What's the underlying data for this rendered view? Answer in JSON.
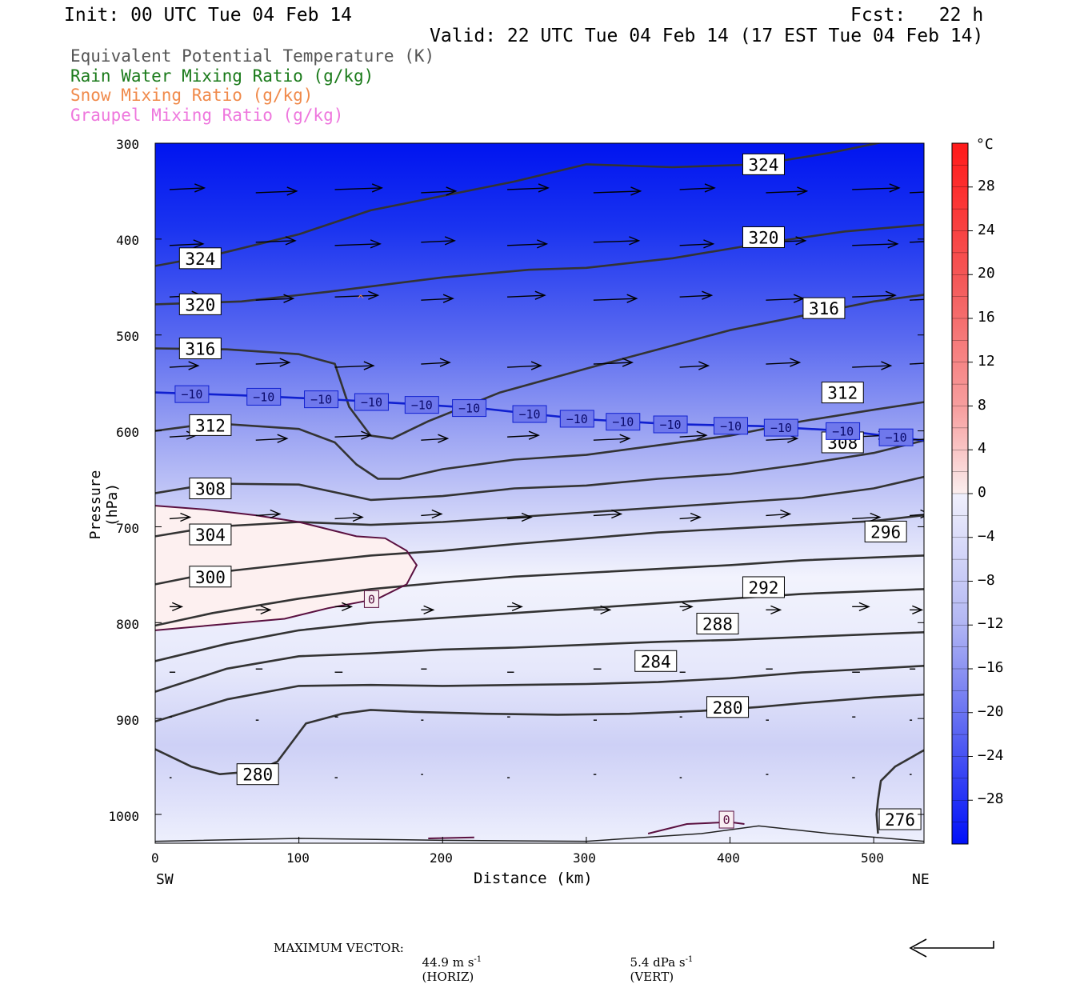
{
  "header": {
    "init": "Init: 00 UTC Tue 04 Feb 14",
    "fcst": "Fcst:   22 h",
    "valid": "Valid: 22 UTC Tue 04 Feb 14 (17 EST Tue 04 Feb 14)"
  },
  "legend": [
    {
      "label": "Equivalent Potential Temperature (K)",
      "color": "#555555"
    },
    {
      "label": "Rain Water Mixing Ratio (g/kg)",
      "color": "#1a7a1a"
    },
    {
      "label": "Snow Mixing Ratio (g/kg)",
      "color": "#f08a4b"
    },
    {
      "label": "Graupel Mixing Ratio (g/kg)",
      "color": "#ee77dd"
    }
  ],
  "axes": {
    "ylabel": "Pressure (hPa)",
    "xlabel": "Distance (km)",
    "x_left_label": "SW",
    "x_right_label": "NE",
    "yticks": [
      "300",
      "400",
      "500",
      "600",
      "700",
      "800",
      "900",
      "1000"
    ],
    "xticks": [
      "0",
      "100",
      "200",
      "300",
      "400",
      "500"
    ]
  },
  "colorbar": {
    "unit": "°C",
    "labels": [
      "28",
      "24",
      "20",
      "16",
      "12",
      "8",
      "4",
      "0",
      "−4",
      "−8",
      "−12",
      "−16",
      "−20",
      "−24",
      "−28"
    ]
  },
  "footer": {
    "max_vector_label": "MAXIMUM VECTOR:",
    "horiz": "44.9 m s",
    "horiz_unit": "(HORIZ)",
    "vert": "5.4 dPa s",
    "vert_unit": "(VERT)",
    "exponent": "-1"
  },
  "chart_data": {
    "type": "cross-section contour",
    "x_range_km": [
      0,
      535
    ],
    "y_range_hpa": [
      300,
      1030
    ],
    "y_scale": "linear pressure, inverted",
    "shading": "Temperature (°C)",
    "shading_range": [
      -32,
      32
    ],
    "theta_e_contours_K": [
      {
        "value": 324,
        "pts": [
          [
            0,
            428
          ],
          [
            40,
            417
          ],
          [
            100,
            395
          ],
          [
            150,
            370
          ],
          [
            200,
            355
          ],
          [
            250,
            340
          ],
          [
            300,
            322
          ],
          [
            360,
            325
          ],
          [
            420,
            322
          ],
          [
            470,
            310
          ],
          [
            535,
            290
          ]
        ]
      },
      {
        "value": 320,
        "pts": [
          [
            0,
            468
          ],
          [
            60,
            465
          ],
          [
            120,
            455
          ],
          [
            200,
            440
          ],
          [
            260,
            432
          ],
          [
            300,
            430
          ],
          [
            360,
            420
          ],
          [
            420,
            405
          ],
          [
            480,
            392
          ],
          [
            535,
            385
          ]
        ]
      },
      {
        "value": 316,
        "pts": [
          [
            0,
            514
          ],
          [
            50,
            515
          ],
          [
            100,
            520
          ],
          [
            125,
            530
          ],
          [
            135,
            575
          ],
          [
            150,
            605
          ],
          [
            165,
            608
          ],
          [
            190,
            590
          ],
          [
            240,
            560
          ],
          [
            300,
            535
          ],
          [
            350,
            515
          ],
          [
            400,
            495
          ],
          [
            450,
            480
          ],
          [
            500,
            465
          ],
          [
            535,
            458
          ]
        ]
      },
      {
        "value": 312,
        "pts": [
          [
            0,
            600
          ],
          [
            40,
            592
          ],
          [
            100,
            598
          ],
          [
            125,
            612
          ],
          [
            140,
            635
          ],
          [
            155,
            650
          ],
          [
            170,
            650
          ],
          [
            200,
            640
          ],
          [
            250,
            630
          ],
          [
            300,
            625
          ],
          [
            350,
            615
          ],
          [
            400,
            605
          ],
          [
            450,
            590
          ],
          [
            500,
            578
          ],
          [
            535,
            570
          ]
        ]
      },
      {
        "value": 308,
        "pts": [
          [
            0,
            665
          ],
          [
            40,
            655
          ],
          [
            100,
            656
          ],
          [
            150,
            672
          ],
          [
            200,
            668
          ],
          [
            250,
            660
          ],
          [
            300,
            657
          ],
          [
            350,
            650
          ],
          [
            400,
            645
          ],
          [
            450,
            635
          ],
          [
            500,
            623
          ],
          [
            535,
            610
          ]
        ]
      },
      {
        "value": 304,
        "pts": [
          [
            0,
            710
          ],
          [
            40,
            700
          ],
          [
            100,
            695
          ],
          [
            150,
            698
          ],
          [
            200,
            695
          ],
          [
            250,
            690
          ],
          [
            300,
            685
          ],
          [
            350,
            680
          ],
          [
            400,
            675
          ],
          [
            450,
            670
          ],
          [
            500,
            660
          ],
          [
            535,
            648
          ]
        ]
      },
      {
        "value": 300,
        "pts": [
          [
            0,
            760
          ],
          [
            40,
            748
          ],
          [
            100,
            738
          ],
          [
            150,
            730
          ],
          [
            200,
            725
          ],
          [
            250,
            718
          ],
          [
            300,
            712
          ],
          [
            350,
            706
          ],
          [
            400,
            702
          ],
          [
            450,
            698
          ],
          [
            500,
            694
          ],
          [
            535,
            688
          ]
        ]
      },
      {
        "value": 296,
        "pts": [
          [
            0,
            803
          ],
          [
            40,
            790
          ],
          [
            100,
            775
          ],
          [
            150,
            765
          ],
          [
            200,
            758
          ],
          [
            250,
            752
          ],
          [
            300,
            748
          ],
          [
            350,
            744
          ],
          [
            400,
            740
          ],
          [
            450,
            735
          ],
          [
            500,
            732
          ],
          [
            535,
            730
          ]
        ]
      },
      {
        "value": 292,
        "pts": [
          [
            0,
            840
          ],
          [
            50,
            822
          ],
          [
            100,
            808
          ],
          [
            150,
            800
          ],
          [
            200,
            795
          ],
          [
            250,
            790
          ],
          [
            300,
            785
          ],
          [
            350,
            780
          ],
          [
            400,
            775
          ],
          [
            450,
            770
          ],
          [
            500,
            767
          ],
          [
            535,
            765
          ]
        ]
      },
      {
        "value": 288,
        "pts": [
          [
            0,
            872
          ],
          [
            50,
            848
          ],
          [
            100,
            835
          ],
          [
            150,
            832
          ],
          [
            200,
            828
          ],
          [
            250,
            826
          ],
          [
            300,
            823
          ],
          [
            350,
            820
          ],
          [
            400,
            818
          ],
          [
            450,
            815
          ],
          [
            500,
            812
          ],
          [
            535,
            810
          ]
        ]
      },
      {
        "value": 284,
        "pts": [
          [
            0,
            903
          ],
          [
            50,
            880
          ],
          [
            100,
            866
          ],
          [
            150,
            865
          ],
          [
            200,
            866
          ],
          [
            250,
            865
          ],
          [
            300,
            864
          ],
          [
            350,
            862
          ],
          [
            400,
            858
          ],
          [
            450,
            852
          ],
          [
            500,
            848
          ],
          [
            535,
            845
          ]
        ]
      },
      {
        "value": 280,
        "pts": [
          [
            0,
            932
          ],
          [
            25,
            950
          ],
          [
            45,
            958
          ],
          [
            70,
            955
          ],
          [
            85,
            945
          ],
          [
            105,
            905
          ],
          [
            130,
            895
          ],
          [
            150,
            891
          ],
          [
            180,
            893
          ],
          [
            230,
            895
          ],
          [
            280,
            896
          ],
          [
            330,
            895
          ],
          [
            380,
            892
          ],
          [
            420,
            888
          ],
          [
            450,
            884
          ],
          [
            500,
            878
          ],
          [
            535,
            875
          ]
        ]
      },
      {
        "value": 276,
        "pts": [
          [
            535,
            933
          ],
          [
            515,
            950
          ],
          [
            505,
            965
          ],
          [
            503,
            985
          ],
          [
            502,
            1000
          ],
          [
            503,
            1020
          ]
        ]
      }
    ],
    "theta_e_labels": [
      {
        "text": "324",
        "x": 410,
        "y": 322
      },
      {
        "text": "324",
        "x": 18,
        "y": 420
      },
      {
        "text": "320",
        "x": 410,
        "y": 398
      },
      {
        "text": "320",
        "x": 18,
        "y": 468
      },
      {
        "text": "316",
        "x": 18,
        "y": 514
      },
      {
        "text": "316",
        "x": 452,
        "y": 472
      },
      {
        "text": "312",
        "x": 25,
        "y": 594
      },
      {
        "text": "312",
        "x": 465,
        "y": 560
      },
      {
        "text": "308",
        "x": 25,
        "y": 660
      },
      {
        "text": "308",
        "x": 465,
        "y": 612
      },
      {
        "text": "304",
        "x": 25,
        "y": 708
      },
      {
        "text": "300",
        "x": 25,
        "y": 752
      },
      {
        "text": "296",
        "x": 495,
        "y": 705
      },
      {
        "text": "292",
        "x": 410,
        "y": 763
      },
      {
        "text": "288",
        "x": 378,
        "y": 801
      },
      {
        "text": "284",
        "x": 335,
        "y": 840
      },
      {
        "text": "280",
        "x": 385,
        "y": 888
      },
      {
        "text": "280",
        "x": 58,
        "y": 958
      },
      {
        "text": "276",
        "x": 505,
        "y": 1005
      }
    ],
    "isotherm_minus10": {
      "value": -10,
      "pts": [
        [
          0,
          560
        ],
        [
          60,
          563
        ],
        [
          120,
          567
        ],
        [
          180,
          572
        ],
        [
          230,
          577
        ],
        [
          260,
          582
        ],
        [
          300,
          588
        ],
        [
          360,
          593
        ],
        [
          420,
          595
        ],
        [
          480,
          600
        ],
        [
          535,
          610
        ]
      ],
      "label_x": [
        25,
        75,
        115,
        150,
        185,
        218,
        260,
        293,
        325,
        358,
        400,
        435,
        478,
        515
      ]
    },
    "isotherm_zero": {
      "value": 0,
      "pts": [
        [
          0,
          678
        ],
        [
          35,
          682
        ],
        [
          70,
          688
        ],
        [
          100,
          695
        ],
        [
          140,
          710
        ],
        [
          160,
          712
        ],
        [
          175,
          725
        ],
        [
          182,
          740
        ],
        [
          175,
          760
        ],
        [
          155,
          775
        ],
        [
          120,
          785
        ],
        [
          90,
          796
        ],
        [
          60,
          800
        ],
        [
          0,
          808
        ]
      ],
      "label": {
        "text": "0",
        "x": 150,
        "y": 775
      },
      "sfc_pts": [
        [
          343,
          1020
        ],
        [
          370,
          1010
        ],
        [
          400,
          1008
        ],
        [
          410,
          1010
        ]
      ],
      "sfc_label": {
        "text": "0",
        "x": 397,
        "y": 1005
      }
    },
    "warm_region_temp_c": 1,
    "snow_marker": {
      "x": 143,
      "y": 462
    },
    "wind_levels_hpa": [
      350,
      405,
      462,
      532,
      608,
      690,
      785,
      850,
      900,
      960
    ],
    "wind_x_km": [
      10,
      70,
      125,
      185,
      245,
      305,
      365,
      425,
      485,
      525
    ],
    "wind_u_scale": [
      0.85,
      0.82,
      0.78,
      0.7,
      0.65,
      0.5,
      0.3,
      0.14,
      0.06,
      0.05
    ]
  }
}
